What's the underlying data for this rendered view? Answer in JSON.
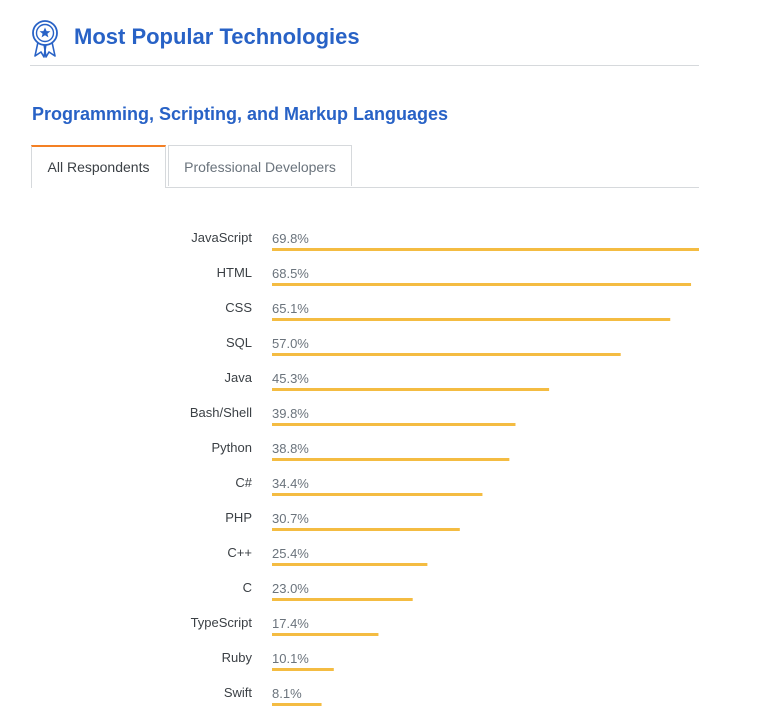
{
  "header": {
    "title": "Most Popular Technologies",
    "icon": "award-ribbon-icon",
    "accent": "#2862c6"
  },
  "section": {
    "subtitle": "Programming, Scripting, and Markup Languages"
  },
  "tabs": [
    {
      "label": "All Respondents",
      "active": true
    },
    {
      "label": "Professional Developers",
      "active": false
    }
  ],
  "chart_data": {
    "type": "bar",
    "orientation": "horizontal",
    "categories": [
      "JavaScript",
      "HTML",
      "CSS",
      "SQL",
      "Java",
      "Bash/Shell",
      "Python",
      "C#",
      "PHP",
      "C++",
      "C",
      "TypeScript",
      "Ruby",
      "Swift"
    ],
    "values": [
      69.8,
      68.5,
      65.1,
      57.0,
      45.3,
      39.8,
      38.8,
      34.4,
      30.7,
      25.4,
      23.0,
      17.4,
      10.1,
      8.1
    ],
    "value_labels": [
      "69.8%",
      "68.5%",
      "65.1%",
      "57.0%",
      "45.3%",
      "39.8%",
      "38.8%",
      "34.4%",
      "30.7%",
      "25.4%",
      "23.0%",
      "17.4%",
      "10.1%",
      "8.1%"
    ],
    "xlim": [
      0,
      69.8
    ],
    "grid": false,
    "bar_color": "#f4bc42"
  }
}
